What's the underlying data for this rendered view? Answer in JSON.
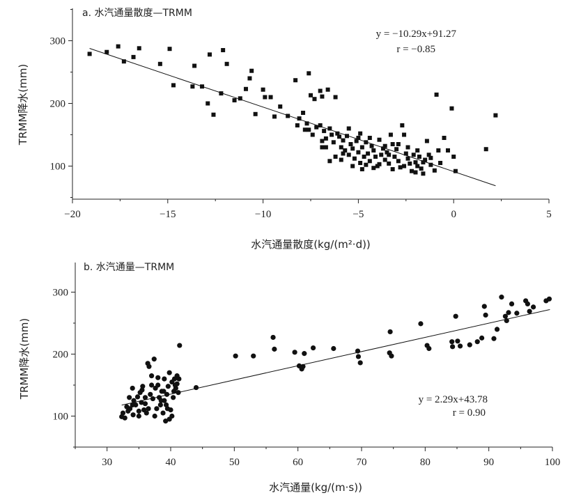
{
  "chart_data": [
    {
      "type": "scatter",
      "panel_label": "a. 水汽通量散度—TRMM",
      "xlabel": "水汽通量散度(kg/(m²·d))",
      "ylabel": "TRMM降水(mm)",
      "xlim": [
        -20,
        5
      ],
      "ylim": [
        50,
        350
      ],
      "xticks": [
        -20,
        -15,
        -10,
        -5,
        0,
        5
      ],
      "xtick_labels": [
        "−20",
        "−15",
        "−10",
        "−5",
        "0",
        "5"
      ],
      "yticks": [
        100,
        200,
        300
      ],
      "marker": "square",
      "color": "#111111",
      "equation": "y = −10.29x+91.27",
      "r_text": "r = −0.85",
      "fit": {
        "slope": -10.29,
        "intercept": 91.27,
        "x_range": [
          -19.1,
          2.2
        ]
      },
      "series": [
        {
          "points": [
            [
              -19.1,
              279
            ],
            [
              -18.2,
              282
            ],
            [
              -17.6,
              291
            ],
            [
              -17.3,
              267
            ],
            [
              -16.5,
              288
            ],
            [
              -16.8,
              274
            ],
            [
              -15.4,
              263
            ],
            [
              -14.9,
              287
            ],
            [
              -14.7,
              229
            ],
            [
              -13.7,
              227
            ],
            [
              -13.2,
              227
            ],
            [
              -13.6,
              260
            ],
            [
              -12.8,
              278
            ],
            [
              -12.9,
              200
            ],
            [
              -12.6,
              182
            ],
            [
              -12.1,
              285
            ],
            [
              -11.9,
              263
            ],
            [
              -12.2,
              216
            ],
            [
              -11.5,
              205
            ],
            [
              -11.2,
              208
            ],
            [
              -10.9,
              223
            ],
            [
              -10.6,
              252
            ],
            [
              -10.7,
              240
            ],
            [
              -10.4,
              183
            ],
            [
              -10.0,
              222
            ],
            [
              -9.9,
              210
            ],
            [
              -9.6,
              210
            ],
            [
              -9.4,
              179
            ],
            [
              -9.1,
              195
            ],
            [
              -8.7,
              180
            ],
            [
              -8.3,
              237
            ],
            [
              -8.1,
              176
            ],
            [
              -7.9,
              185
            ],
            [
              -7.6,
              248
            ],
            [
              -7.5,
              213
            ],
            [
              -7.7,
              168
            ],
            [
              -7.3,
              207
            ],
            [
              -7.0,
              220
            ],
            [
              -6.9,
              211
            ],
            [
              -6.6,
              222
            ],
            [
              -6.2,
              210
            ],
            [
              -7.6,
              158
            ],
            [
              -7.4,
              150
            ],
            [
              -7.2,
              162
            ],
            [
              -7.0,
              165
            ],
            [
              -6.9,
              140
            ],
            [
              -6.8,
              156
            ],
            [
              -6.7,
              144
            ],
            [
              -6.5,
              160
            ],
            [
              -6.4,
              150
            ],
            [
              -6.3,
              138
            ],
            [
              -6.1,
              152
            ],
            [
              -6.0,
              147
            ],
            [
              -5.9,
              130
            ],
            [
              -5.8,
              141
            ],
            [
              -5.7,
              125
            ],
            [
              -5.6,
              148
            ],
            [
              -5.5,
              118
            ],
            [
              -5.4,
              135
            ],
            [
              -5.3,
              128
            ],
            [
              -5.2,
              112
            ],
            [
              -5.1,
              140
            ],
            [
              -5.0,
              122
            ],
            [
              -4.9,
              105
            ],
            [
              -4.8,
              130
            ],
            [
              -4.7,
              115
            ],
            [
              -4.6,
              138
            ],
            [
              -4.5,
              120
            ],
            [
              -4.4,
              108
            ],
            [
              -4.3,
              132
            ],
            [
              -4.2,
              125
            ],
            [
              -4.1,
              115
            ],
            [
              -4.0,
              100
            ],
            [
              -3.9,
              142
            ],
            [
              -3.8,
              118
            ],
            [
              -3.7,
              128
            ],
            [
              -3.6,
              110
            ],
            [
              -3.5,
              122
            ],
            [
              -3.4,
              104
            ],
            [
              -3.3,
              150
            ],
            [
              -3.2,
              135
            ],
            [
              -3.1,
              115
            ],
            [
              -3.0,
              127
            ],
            [
              -2.9,
              108
            ],
            [
              -2.8,
              98
            ],
            [
              -2.7,
              165
            ],
            [
              -2.6,
              150
            ],
            [
              -2.5,
              120
            ],
            [
              -2.4,
              112
            ],
            [
              -2.3,
              104
            ],
            [
              -2.2,
              92
            ],
            [
              -2.1,
              118
            ],
            [
              -2.0,
              106
            ],
            [
              -1.9,
              100
            ],
            [
              -1.8,
              115
            ],
            [
              -1.7,
              96
            ],
            [
              -1.6,
              88
            ],
            [
              -1.5,
              110
            ],
            [
              -1.4,
              140
            ],
            [
              -1.3,
              118
            ],
            [
              -1.2,
              102
            ],
            [
              -1.0,
              93
            ],
            [
              -0.9,
              214
            ],
            [
              -0.8,
              125
            ],
            [
              -0.5,
              145
            ],
            [
              -0.3,
              125
            ],
            [
              -0.1,
              192
            ],
            [
              0.0,
              115
            ],
            [
              0.1,
              92
            ],
            [
              1.7,
              127
            ],
            [
              2.2,
              181
            ],
            [
              -6.9,
              130
            ],
            [
              -6.2,
              115
            ],
            [
              -5.9,
              110
            ],
            [
              -5.5,
              160
            ],
            [
              -4.8,
              95
            ],
            [
              -4.4,
              145
            ],
            [
              -3.9,
              103
            ],
            [
              -3.2,
              95
            ],
            [
              -2.6,
              100
            ],
            [
              -2.0,
              90
            ],
            [
              -1.9,
              125
            ],
            [
              -1.6,
              106
            ],
            [
              -4.6,
              102
            ],
            [
              -5.3,
              100
            ],
            [
              -6.5,
              108
            ],
            [
              -3.6,
              132
            ],
            [
              -2.9,
              135
            ],
            [
              -4.2,
              97
            ],
            [
              -5.8,
              120
            ],
            [
              -6.7,
              130
            ],
            [
              -7.8,
              158
            ],
            [
              -8.2,
              165
            ],
            [
              -5.0,
              145
            ],
            [
              -3.4,
              118
            ],
            [
              -2.4,
              130
            ],
            [
              -1.2,
              113
            ],
            [
              -0.7,
              105
            ],
            [
              -4.9,
              152
            ]
          ]
        }
      ]
    },
    {
      "type": "scatter",
      "panel_label": "b. 水汽通量—TRMM",
      "xlabel": "水汽通量(kg/(m·s))",
      "ylabel": "TRMM降水(mm)",
      "xlim": [
        25,
        100
      ],
      "ylim": [
        50,
        350
      ],
      "xticks": [
        30,
        40,
        50,
        60,
        70,
        80,
        90,
        100
      ],
      "xtick_labels": [
        "30",
        "40",
        "50",
        "60",
        "70",
        "80",
        "90",
        "100"
      ],
      "yticks": [
        100,
        200,
        300
      ],
      "marker": "circle",
      "color": "#111111",
      "equation": "y = 2.29x+43.78",
      "r_text": "r = 0.90",
      "fit": {
        "slope": 2.29,
        "intercept": 43.78,
        "x_range": [
          32.3,
          99.6
        ]
      },
      "series": [
        {
          "points": [
            [
              32.3,
              99
            ],
            [
              32.5,
              105
            ],
            [
              32.8,
              97
            ],
            [
              33.1,
              115
            ],
            [
              33.3,
              108
            ],
            [
              33.6,
              112
            ],
            [
              34.0,
              145
            ],
            [
              34.2,
              125
            ],
            [
              34.5,
              118
            ],
            [
              34.8,
              131
            ],
            [
              35.0,
              100
            ],
            [
              35.2,
              138
            ],
            [
              35.4,
              122
            ],
            [
              35.6,
              148
            ],
            [
              35.8,
              110
            ],
            [
              36.0,
              120
            ],
            [
              36.2,
              105
            ],
            [
              36.4,
              185
            ],
            [
              36.6,
              180
            ],
            [
              36.8,
              135
            ],
            [
              37.0,
              165
            ],
            [
              37.2,
              128
            ],
            [
              37.4,
              192
            ],
            [
              37.6,
              145
            ],
            [
              37.8,
              112
            ],
            [
              38.0,
              150
            ],
            [
              38.2,
              130
            ],
            [
              38.4,
              118
            ],
            [
              38.6,
              140
            ],
            [
              38.8,
              105
            ],
            [
              39.0,
              125
            ],
            [
              39.2,
              92
            ],
            [
              39.4,
              135
            ],
            [
              39.6,
              148
            ],
            [
              39.8,
              170
            ],
            [
              40.0,
              110
            ],
            [
              40.2,
              155
            ],
            [
              40.4,
              130
            ],
            [
              40.6,
              160
            ],
            [
              40.8,
              145
            ],
            [
              41.0,
              152
            ],
            [
              41.2,
              138
            ],
            [
              33.5,
              130
            ],
            [
              34.1,
              102
            ],
            [
              35.5,
              142
            ],
            [
              36.5,
              112
            ],
            [
              37.5,
              100
            ],
            [
              38.5,
              125
            ],
            [
              39.5,
              112
            ],
            [
              40.5,
              140
            ],
            [
              41.0,
              165
            ],
            [
              39.0,
              160
            ],
            [
              38.0,
              162
            ],
            [
              37.0,
              150
            ],
            [
              36.0,
              130
            ],
            [
              35.0,
              108
            ],
            [
              34.0,
              118
            ],
            [
              39.8,
              95
            ],
            [
              40.2,
              100
            ],
            [
              38.9,
              140
            ],
            [
              39.3,
              118
            ],
            [
              40.7,
              150
            ],
            [
              41.3,
              160
            ],
            [
              41.4,
              214
            ],
            [
              44.0,
              146
            ],
            [
              50.2,
              197
            ],
            [
              53.0,
              197
            ],
            [
              56.1,
              227
            ],
            [
              56.3,
              208
            ],
            [
              59.5,
              203
            ],
            [
              60.2,
              181
            ],
            [
              60.6,
              176
            ],
            [
              60.8,
              180
            ],
            [
              61.0,
              201
            ],
            [
              62.4,
              210
            ],
            [
              65.6,
              209
            ],
            [
              69.4,
              205
            ],
            [
              69.5,
              196
            ],
            [
              69.8,
              186
            ],
            [
              74.5,
              236
            ],
            [
              74.7,
              197
            ],
            [
              74.4,
              202
            ],
            [
              79.3,
              249
            ],
            [
              80.3,
              214
            ],
            [
              80.6,
              209
            ],
            [
              84.2,
              220
            ],
            [
              84.3,
              212
            ],
            [
              84.8,
              261
            ],
            [
              85.1,
              221
            ],
            [
              85.5,
              213
            ],
            [
              87.0,
              215
            ],
            [
              88.2,
              220
            ],
            [
              88.9,
              226
            ],
            [
              89.3,
              277
            ],
            [
              89.5,
              263
            ],
            [
              90.8,
              225
            ],
            [
              91.3,
              240
            ],
            [
              92.0,
              292
            ],
            [
              92.6,
              261
            ],
            [
              92.8,
              254
            ],
            [
              93.1,
              267
            ],
            [
              93.6,
              281
            ],
            [
              94.4,
              266
            ],
            [
              95.8,
              286
            ],
            [
              96.1,
              281
            ],
            [
              96.4,
              269
            ],
            [
              97.0,
              276
            ],
            [
              99.0,
              286
            ],
            [
              99.5,
              289
            ]
          ]
        }
      ]
    }
  ]
}
